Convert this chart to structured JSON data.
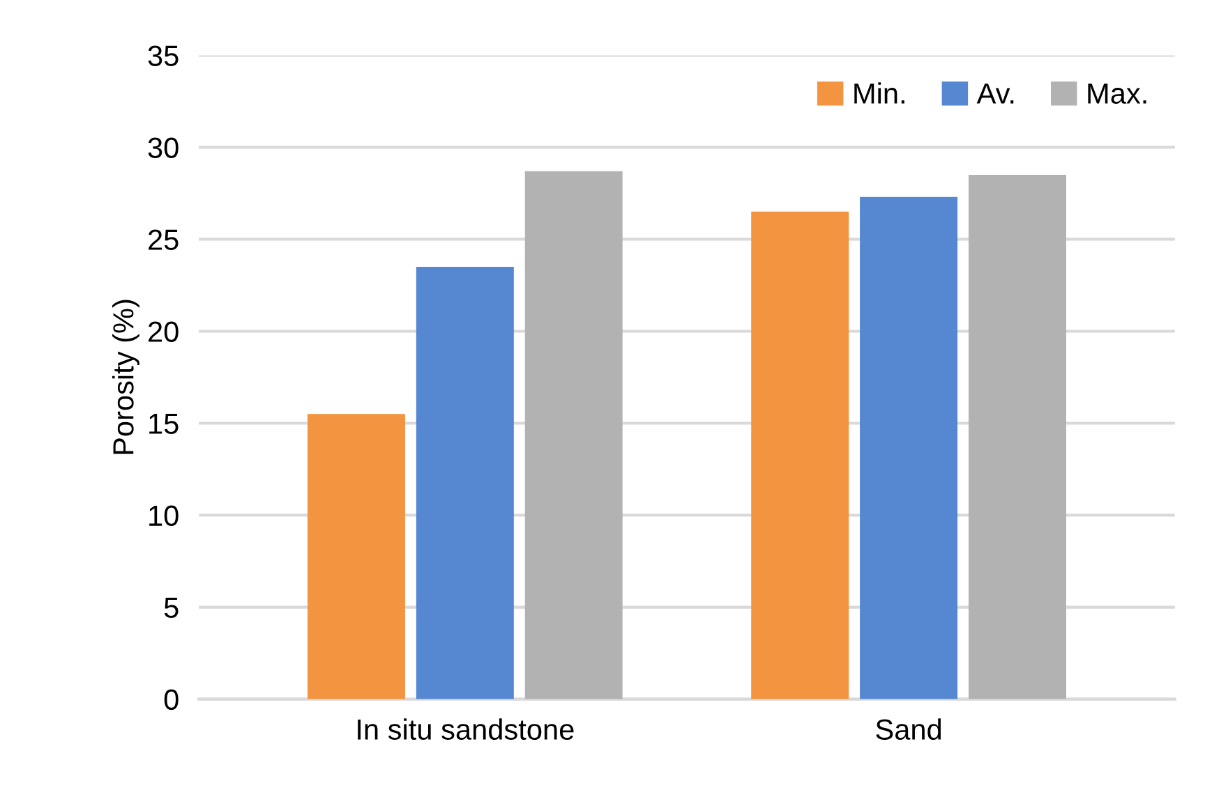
{
  "chart_data": {
    "type": "bar",
    "ylabel": "Porosity (%)",
    "categories": [
      "In situ sandstone",
      "Sand"
    ],
    "series": [
      {
        "name": "Min.",
        "color": "#f39441",
        "values": [
          15.5,
          26.5
        ]
      },
      {
        "name": "Av.",
        "color": "#5588d0",
        "values": [
          23.5,
          27.3
        ]
      },
      {
        "name": "Max.",
        "color": "#b2b2b2",
        "values": [
          28.7,
          28.5
        ]
      }
    ],
    "ylim": [
      0,
      35
    ],
    "yticks": [
      0,
      5,
      10,
      15,
      20,
      25,
      30,
      35
    ],
    "grid": "y",
    "legend": "top right"
  }
}
